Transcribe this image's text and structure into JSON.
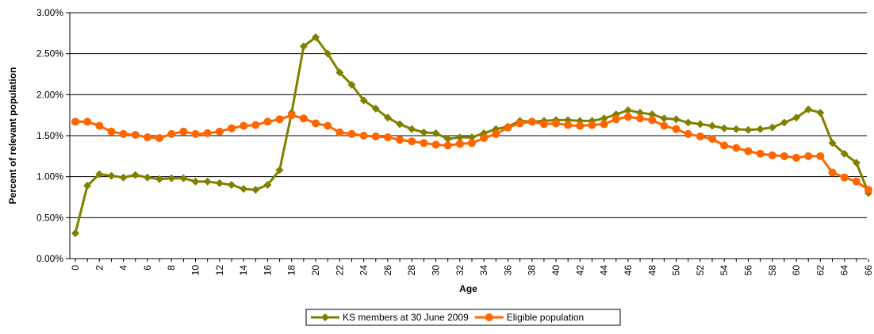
{
  "chart_data": {
    "type": "line",
    "title": "",
    "xlabel": "Age",
    "ylabel": "Percent of relevant population",
    "ylim": [
      0,
      3
    ],
    "y_ticks": [
      "0.00%",
      "0.50%",
      "1.00%",
      "1.50%",
      "2.00%",
      "2.50%",
      "3.00%"
    ],
    "y_tick_values": [
      0,
      0.5,
      1.0,
      1.5,
      2.0,
      2.5,
      3.0
    ],
    "x_ticks": [
      "0",
      "2",
      "4",
      "6",
      "8",
      "10",
      "12",
      "14",
      "16",
      "18",
      "20",
      "22",
      "24",
      "26",
      "28",
      "30",
      "32",
      "34",
      "36",
      "38",
      "40",
      "42",
      "44",
      "46",
      "48",
      "50",
      "52",
      "54",
      "56",
      "58",
      "60",
      "62",
      "64",
      "66"
    ],
    "x": [
      0,
      1,
      2,
      3,
      4,
      5,
      6,
      7,
      8,
      9,
      10,
      11,
      12,
      13,
      14,
      15,
      16,
      17,
      18,
      19,
      20,
      21,
      22,
      23,
      24,
      25,
      26,
      27,
      28,
      29,
      30,
      31,
      32,
      33,
      34,
      35,
      36,
      37,
      38,
      39,
      40,
      41,
      42,
      43,
      44,
      45,
      46,
      47,
      48,
      49,
      50,
      51,
      52,
      53,
      54,
      55,
      56,
      57,
      58,
      59,
      60,
      61,
      62,
      63,
      64,
      65,
      66
    ],
    "grid": "horizontal",
    "legend_position": "bottom",
    "series": [
      {
        "name": "KS members at 30 June 2009",
        "color": "#808000",
        "marker": "diamond",
        "values": [
          0.31,
          0.89,
          1.03,
          1.01,
          0.99,
          1.02,
          0.99,
          0.97,
          0.98,
          0.98,
          0.94,
          0.94,
          0.92,
          0.9,
          0.85,
          0.84,
          0.9,
          1.08,
          1.78,
          2.59,
          2.7,
          2.5,
          2.27,
          2.12,
          1.93,
          1.83,
          1.72,
          1.64,
          1.58,
          1.54,
          1.53,
          1.46,
          1.48,
          1.48,
          1.53,
          1.58,
          1.61,
          1.68,
          1.67,
          1.68,
          1.69,
          1.69,
          1.68,
          1.68,
          1.71,
          1.76,
          1.81,
          1.78,
          1.76,
          1.71,
          1.7,
          1.66,
          1.64,
          1.62,
          1.59,
          1.58,
          1.57,
          1.58,
          1.6,
          1.66,
          1.72,
          1.82,
          1.78,
          1.41,
          1.28,
          1.17,
          0.8
        ]
      },
      {
        "name": "Eligible population",
        "color": "#FF6600",
        "marker": "circle",
        "values": [
          1.67,
          1.67,
          1.62,
          1.55,
          1.52,
          1.51,
          1.48,
          1.47,
          1.52,
          1.55,
          1.52,
          1.53,
          1.55,
          1.59,
          1.62,
          1.63,
          1.67,
          1.7,
          1.75,
          1.71,
          1.65,
          1.62,
          1.54,
          1.52,
          1.5,
          1.49,
          1.48,
          1.45,
          1.43,
          1.41,
          1.39,
          1.38,
          1.4,
          1.41,
          1.47,
          1.52,
          1.6,
          1.65,
          1.67,
          1.64,
          1.65,
          1.63,
          1.62,
          1.63,
          1.64,
          1.7,
          1.73,
          1.71,
          1.69,
          1.62,
          1.58,
          1.52,
          1.49,
          1.46,
          1.38,
          1.35,
          1.31,
          1.28,
          1.26,
          1.25,
          1.23,
          1.25,
          1.25,
          1.05,
          0.99,
          0.94,
          0.84
        ]
      }
    ]
  }
}
